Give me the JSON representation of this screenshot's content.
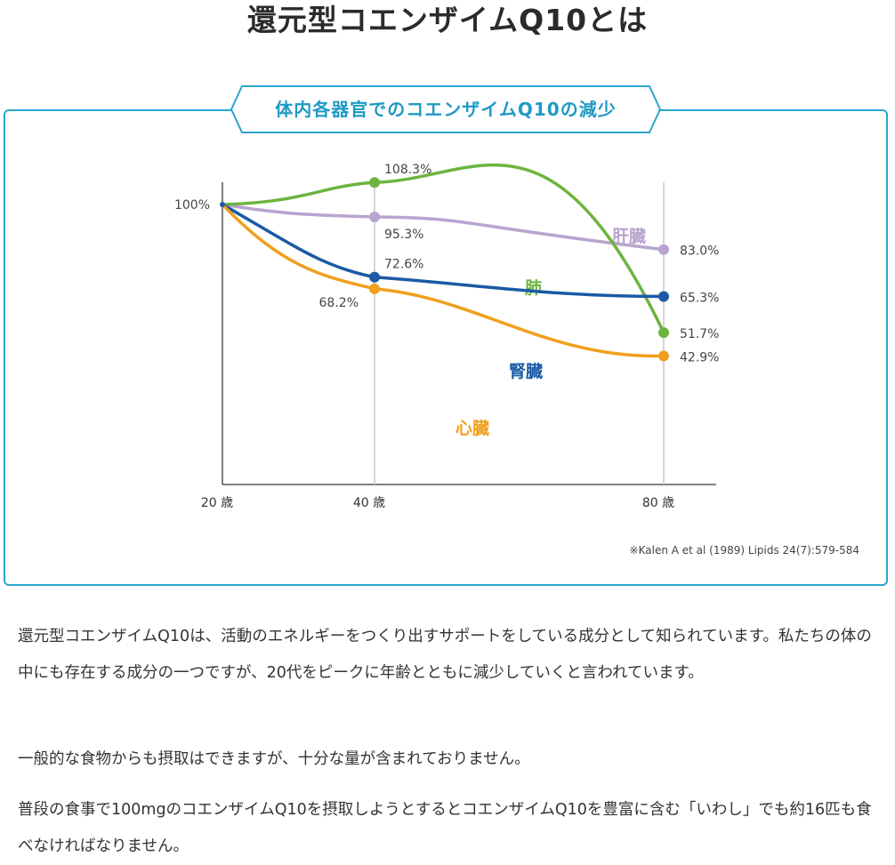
{
  "page": {
    "title": "還元型コエンザイムQ10とは"
  },
  "chart_heading": "体内各器官でのコエンザイムQ10の減少",
  "chart_data": {
    "type": "line",
    "title": "体内各器官でのコエンザイムQ10の減少",
    "categories": [
      "20 歳",
      "40 歳",
      "80 歳"
    ],
    "x": [
      20,
      40,
      80
    ],
    "ylim": [
      0,
      115
    ],
    "y_reference_label": "100%",
    "grid": "vertical lines at 40 and 80",
    "series": [
      {
        "name": "肝臓",
        "color": "#b9a4cf",
        "values": [
          100,
          95.3,
          83.0
        ],
        "labels": [
          "",
          "95.3%",
          "83.0%"
        ]
      },
      {
        "name": "肺",
        "color": "#6cb43f",
        "values": [
          100,
          108.3,
          51.7
        ],
        "labels": [
          "",
          "108.3%",
          "51.7%"
        ]
      },
      {
        "name": "腎臓",
        "color": "#1a5aa6",
        "values": [
          100,
          72.6,
          65.3
        ],
        "labels": [
          "",
          "72.6%",
          "65.3%"
        ]
      },
      {
        "name": "心臓",
        "color": "#f0a01e",
        "values": [
          100,
          68.2,
          42.9
        ],
        "labels": [
          "",
          "68.2%",
          "42.9%"
        ]
      }
    ]
  },
  "source_note": "※Kalen A et al (1989) Lipids 24(7):579-584",
  "paragraphs": {
    "p1": "還元型コエンザイムQ10は、活動のエネルギーをつくり出すサポートをしている成分として知られています。私たちの体の中にも存在する成分の一つですが、20代をピークに年齢とともに減少していくと言われています。",
    "p2": "一般的な食物からも摂取はできますが、十分な量が含まれておりません。",
    "p3": "普段の食事で100mgのコエンザイムQ10を摂取しようとするとコエンザイムQ10を豊富に含む「いわし」でも約16匹も食べなければなりません。"
  }
}
